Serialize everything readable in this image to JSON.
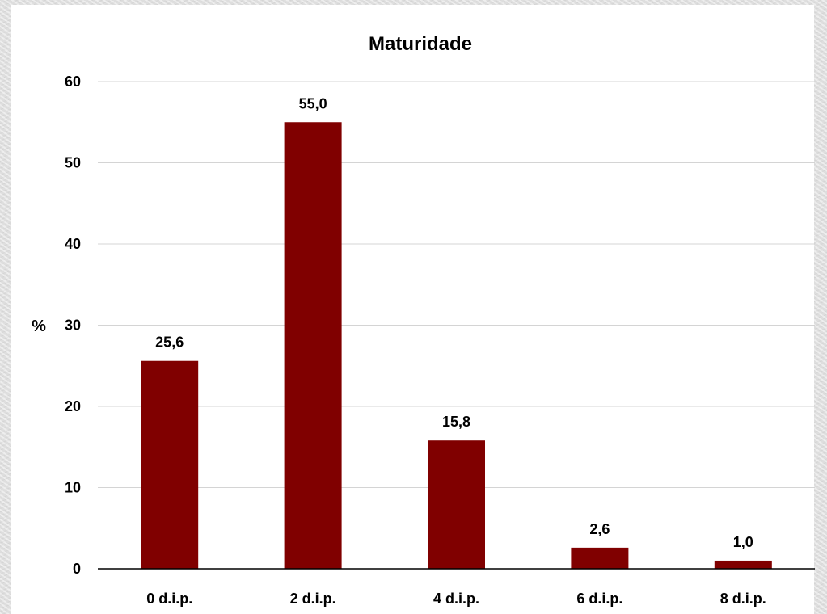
{
  "chart_data": {
    "type": "bar",
    "title": "Maturidade",
    "ylabel": "%",
    "xlabel": "",
    "categories": [
      "0 d.i.p.",
      "2 d.i.p.",
      "4 d.i.p.",
      "6 d.i.p.",
      "8 d.i.p."
    ],
    "values": [
      25.6,
      55.0,
      15.8,
      2.6,
      1.0
    ],
    "data_labels": [
      "25,6",
      "55,0",
      "15,8",
      "2,6",
      "1,0"
    ],
    "ylim": [
      0,
      60
    ],
    "yticks": [
      0,
      10,
      20,
      30,
      40,
      50,
      60
    ],
    "grid": true,
    "legend": "none",
    "bar_color": "#800000"
  }
}
